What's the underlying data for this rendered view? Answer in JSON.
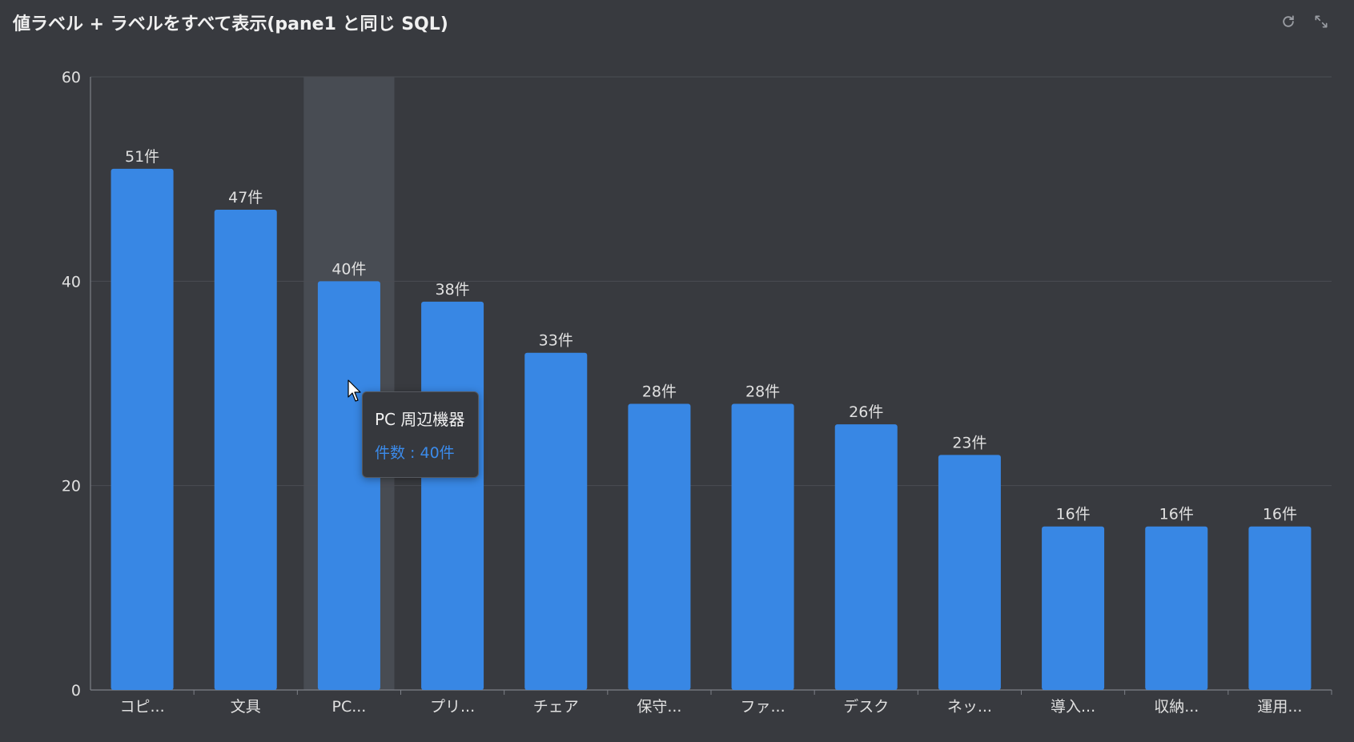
{
  "title": "値ラベル + ラベルをすべて表示(pane1 と同じ SQL)",
  "icons": {
    "refresh": "refresh-icon",
    "expand": "expand-icon"
  },
  "colors": {
    "background": "#383a3f",
    "bar": "#3887e4",
    "highlight": "#484c53",
    "grid": "#4a4d53",
    "axis": "#7d8087",
    "text": "#e0e0e0",
    "tooltip_value": "#3b8beb"
  },
  "tooltip": {
    "title": "PC 周辺機器",
    "value": "件数 : 40件"
  },
  "chart_data": {
    "type": "bar",
    "categories": [
      "コピ...",
      "文具",
      "PC...",
      "プリ...",
      "チェア",
      "保守...",
      "ファ...",
      "デスク",
      "ネッ...",
      "導入...",
      "収納...",
      "運用..."
    ],
    "series": [
      {
        "values": [
          51,
          47,
          40,
          38,
          33,
          28,
          28,
          26,
          23,
          16,
          16,
          16
        ]
      }
    ],
    "data_labels": [
      "51件",
      "47件",
      "40件",
      "38件",
      "33件",
      "28件",
      "28件",
      "26件",
      "23件",
      "16件",
      "16件",
      "16件"
    ],
    "y_ticks": [
      0,
      20,
      40,
      60
    ],
    "ylim": [
      0,
      60
    ],
    "grid": true,
    "highlighted_index": 2
  }
}
